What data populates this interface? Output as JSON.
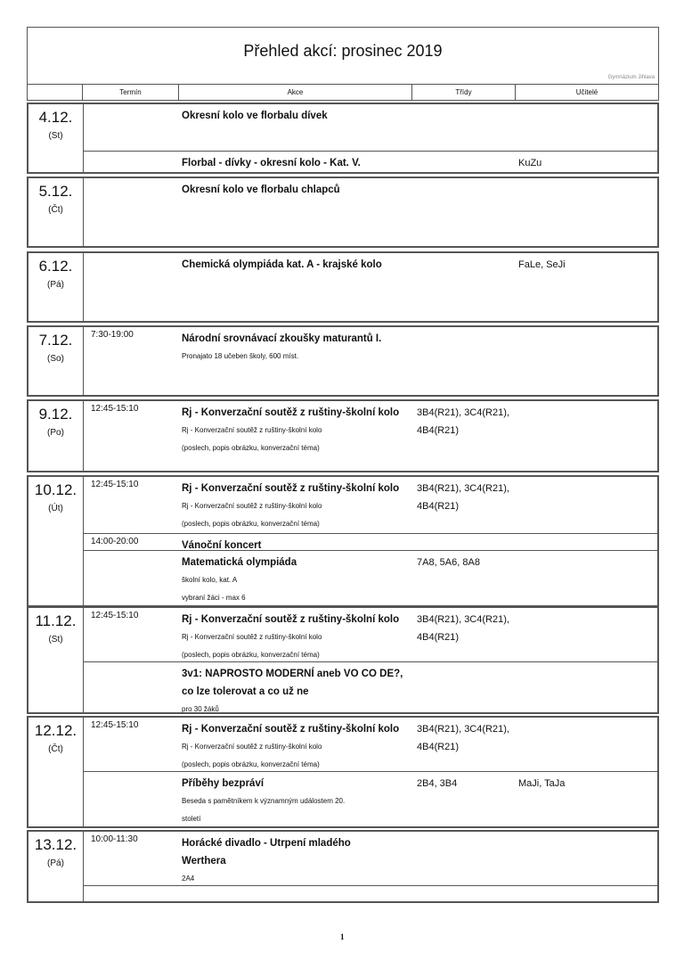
{
  "header": {
    "title": "Přehled akcí:  prosinec 2019",
    "school": "Gymnázium Jihlava"
  },
  "columns": {
    "date": "",
    "time": "Termín",
    "event": "Akce",
    "classes": "Třídy",
    "teachers": "Učitelé"
  },
  "days": [
    {
      "date": "4.12.",
      "weekday": "(St)",
      "rows": [
        {
          "time": "",
          "lines": [
            {
              "text": "Okresní kolo ve florbalu dívek",
              "style": "main"
            }
          ],
          "classes": [],
          "teachers": ""
        },
        {
          "time": "",
          "lines": [
            {
              "text": "Florbal - dívky - okresní kolo - Kat. V.",
              "style": "main"
            }
          ],
          "classes": [],
          "teachers": "KuZu"
        }
      ]
    },
    {
      "date": "5.12.",
      "weekday": "(Čt)",
      "rows": [
        {
          "time": "",
          "lines": [
            {
              "text": "Okresní kolo ve florbalu chlapců",
              "style": "main"
            }
          ],
          "classes": [],
          "teachers": ""
        }
      ]
    },
    {
      "date": "6.12.",
      "weekday": "(Pá)",
      "rows": [
        {
          "time": "",
          "lines": [
            {
              "text": "Chemická olympiáda kat. A - krajské kolo",
              "style": "main"
            }
          ],
          "classes": [],
          "teachers": "FaLe, SeJi"
        }
      ]
    },
    {
      "date": "7.12.",
      "weekday": "(So)",
      "rows": [
        {
          "time": "7:30-19:00",
          "lines": [
            {
              "text": "Národní srovnávací zkoušky maturantů I.",
              "style": "main"
            },
            {
              "text": "Pronajato 18 učeben školy, 600 míst.",
              "style": "small"
            }
          ],
          "classes": [],
          "teachers": ""
        }
      ]
    },
    {
      "date": "9.12.",
      "weekday": "(Po)",
      "rows": [
        {
          "time": "12:45-15:10",
          "lines": [
            {
              "text": "Rj - Konverzační soutěž z ruštiny-školní kolo",
              "style": "main"
            },
            {
              "text": "Rj - Konverzační soutěž z ruštiny-školní kolo",
              "style": "small"
            },
            {
              "text": "(poslech, popis obrázku, konverzační téma)",
              "style": "small"
            }
          ],
          "classes": [
            "3B4(R21), 3C4(R21),",
            "4B4(R21)"
          ],
          "teachers": ""
        }
      ]
    },
    {
      "date": "10.12.",
      "weekday": "(Út)",
      "rows": [
        {
          "time": "12:45-15:10",
          "lines": [
            {
              "text": "Rj - Konverzační soutěž z ruštiny-školní kolo",
              "style": "main"
            },
            {
              "text": "Rj - Konverzační soutěž z ruštiny-školní kolo",
              "style": "small"
            },
            {
              "text": "(poslech, popis obrázku, konverzační téma)",
              "style": "small"
            }
          ],
          "classes": [
            "3B4(R21), 3C4(R21),",
            "4B4(R21)"
          ],
          "teachers": ""
        },
        {
          "time": "14:00-20:00",
          "lines": [
            {
              "text": "Vánoční koncert",
              "style": "main"
            }
          ],
          "classes": [],
          "teachers": ""
        },
        {
          "time": "",
          "lines": [
            {
              "text": "Matematická olympiáda",
              "style": "main"
            },
            {
              "text": "školní kolo, kat. A",
              "style": "small"
            },
            {
              "text": "vybraní žáci - max 6",
              "style": "small"
            }
          ],
          "classes": [
            "7A8, 5A6, 8A8"
          ],
          "teachers": ""
        }
      ]
    },
    {
      "date": "11.12.",
      "weekday": "(St)",
      "rows": [
        {
          "time": "12:45-15:10",
          "lines": [
            {
              "text": "Rj - Konverzační soutěž z ruštiny-školní kolo",
              "style": "main"
            },
            {
              "text": "Rj - Konverzační soutěž z ruštiny-školní kolo",
              "style": "small"
            },
            {
              "text": "(poslech, popis obrázku, konverzační téma)",
              "style": "small"
            }
          ],
          "classes": [
            "3B4(R21), 3C4(R21),",
            "4B4(R21)"
          ],
          "teachers": ""
        },
        {
          "time": "",
          "lines": [
            {
              "text": "3v1: NAPROSTO MODERNÍ aneb VO CO DE?,",
              "style": "main"
            },
            {
              "text": "co lze tolerovat a co už ne",
              "style": "main"
            },
            {
              "text": "pro 30 žáků",
              "style": "small"
            }
          ],
          "classes": [],
          "teachers": ""
        }
      ]
    },
    {
      "date": "12.12.",
      "weekday": "(Čt)",
      "rows": [
        {
          "time": "12:45-15:10",
          "lines": [
            {
              "text": "Rj - Konverzační soutěž z ruštiny-školní kolo",
              "style": "main"
            },
            {
              "text": "Rj - Konverzační soutěž z ruštiny-školní kolo",
              "style": "small"
            },
            {
              "text": "(poslech, popis obrázku, konverzační téma)",
              "style": "small"
            }
          ],
          "classes": [
            "3B4(R21), 3C4(R21),",
            "4B4(R21)"
          ],
          "teachers": ""
        },
        {
          "time": "",
          "lines": [
            {
              "text": "Příběhy bezpráví",
              "style": "main"
            },
            {
              "text": "Beseda s pamětníkem k významným událostem 20.",
              "style": "small"
            },
            {
              "text": "století",
              "style": "small"
            }
          ],
          "classes": [
            "2B4, 3B4"
          ],
          "teachers": "MaJi, TaJa"
        }
      ]
    },
    {
      "date": "13.12.",
      "weekday": "(Pá)",
      "rows": [
        {
          "time": "10:00-11:30",
          "lines": [
            {
              "text": "Horácké divadlo - Utrpení mladého",
              "style": "main"
            },
            {
              "text": "Werthera",
              "style": "main"
            },
            {
              "text": "2A4",
              "style": "small"
            }
          ],
          "classes": [],
          "teachers": ""
        },
        {
          "time": "",
          "lines": [],
          "classes": [],
          "teachers": ""
        }
      ]
    }
  ],
  "footer": {
    "page_number": "1"
  }
}
